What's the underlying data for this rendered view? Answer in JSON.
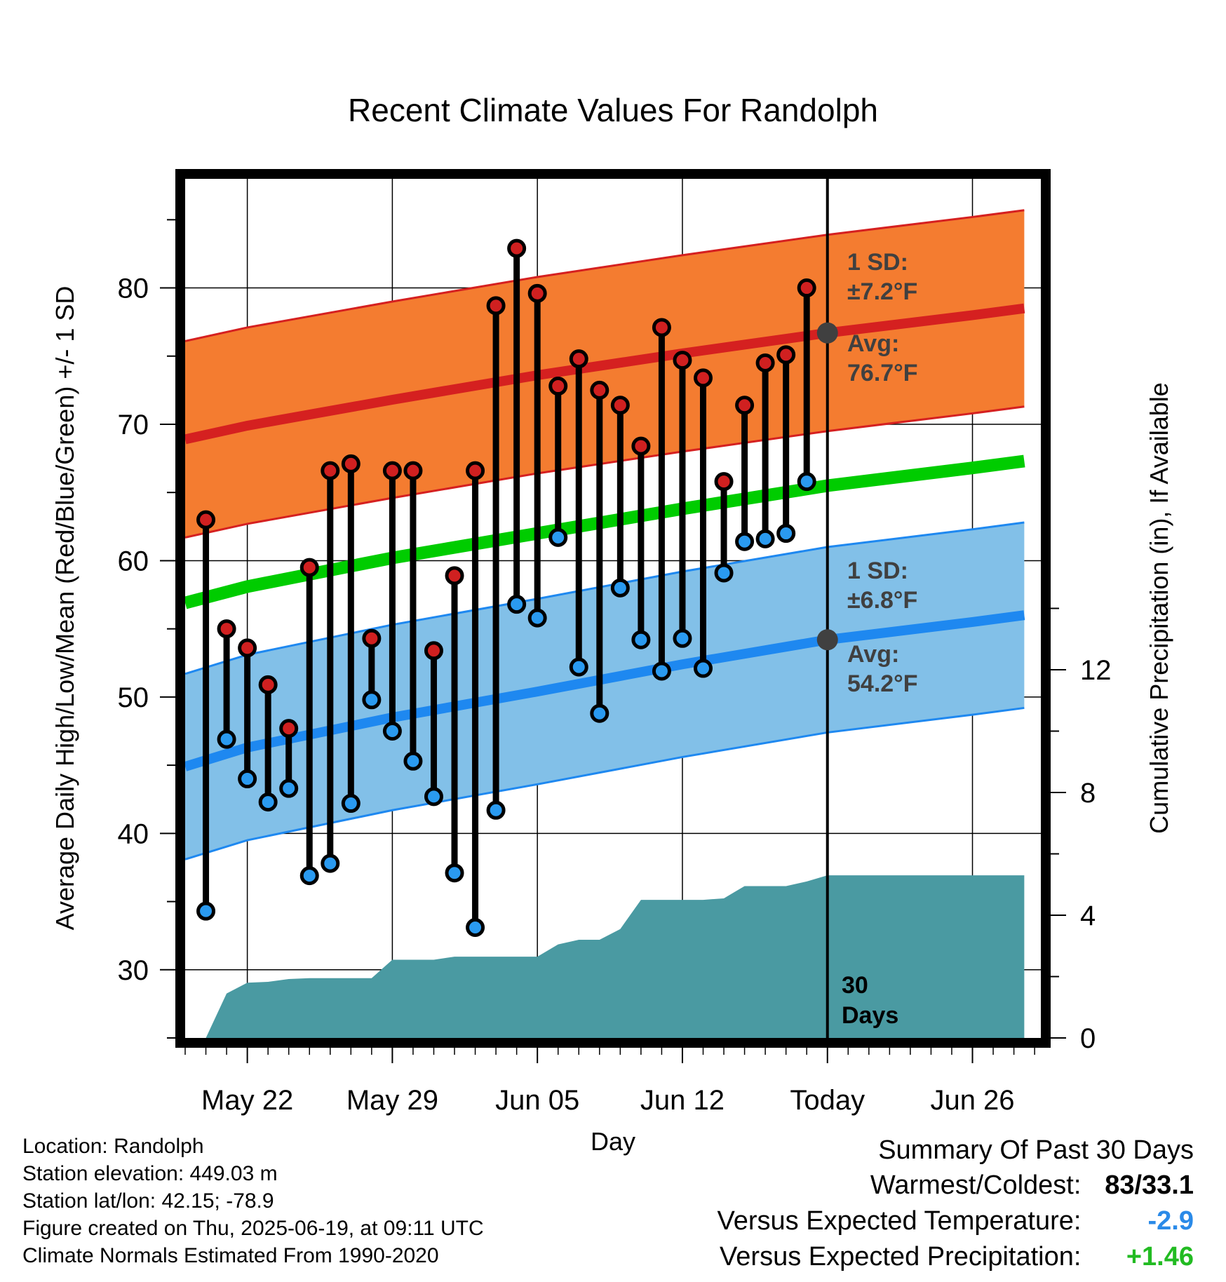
{
  "chart_data": {
    "type": "line",
    "title": "Recent Climate Values For Randolph",
    "xlabel": "Day",
    "ylabel": "Average Daily High/Low/Mean (Red/Blue/Green) +/- 1 SD",
    "y2label": "Cumulative Precipitation (in), If Available",
    "ylim": [
      25,
      88
    ],
    "y2lim": [
      0,
      28
    ],
    "yticks": [
      30,
      40,
      50,
      60,
      70,
      80
    ],
    "y2ticks": [
      0,
      4,
      8,
      12
    ],
    "x_tick_labels": [
      {
        "day": 3,
        "label": "May 22"
      },
      {
        "day": 10,
        "label": "May 29"
      },
      {
        "day": 17,
        "label": "Jun 05"
      },
      {
        "day": 24,
        "label": "Jun 12"
      },
      {
        "day": 31,
        "label": "Today"
      },
      {
        "day": 38,
        "label": "Jun 26"
      }
    ],
    "xlim": [
      0,
      41.3
    ],
    "daily_high": [
      63,
      55,
      53.6,
      50.9,
      47.7,
      59.5,
      66.6,
      67.1,
      54.3,
      66.6,
      66.6,
      53.4,
      58.9,
      66.6,
      78.7,
      82.9,
      79.6,
      72.8,
      74.8,
      72.5,
      71.4,
      68.4,
      77.1,
      74.7,
      73.4,
      65.8,
      71.4,
      74.5,
      75.1,
      80
    ],
    "daily_low": [
      34.3,
      46.9,
      44,
      42.3,
      43.3,
      36.9,
      37.8,
      42.2,
      49.8,
      47.5,
      45.3,
      42.7,
      37.1,
      33.1,
      41.7,
      56.8,
      55.8,
      61.7,
      52.2,
      48.8,
      58,
      54.2,
      51.9,
      54.3,
      52.1,
      59.1,
      61.4,
      61.6,
      62,
      65.8
    ],
    "normal_high": {
      "x": [
        0,
        3,
        10,
        17,
        24,
        31,
        38,
        40.5
      ],
      "mean": [
        68.9,
        69.9,
        71.8,
        73.6,
        75.2,
        76.7,
        78,
        78.5
      ],
      "sd": 7.2
    },
    "normal_low": {
      "x": [
        0,
        3,
        10,
        17,
        24,
        31,
        38,
        40.5
      ],
      "mean": [
        44.9,
        46.3,
        48.5,
        50.4,
        52.4,
        54.2,
        55.5,
        56
      ],
      "sd": 6.8
    },
    "normal_mean": {
      "x": [
        0,
        3,
        10,
        17,
        24,
        31,
        38,
        40.5
      ],
      "values": [
        56.9,
        58.1,
        60.2,
        62,
        63.8,
        65.5,
        66.8,
        67.3
      ]
    },
    "cumulative_precip": {
      "x": [
        1,
        2,
        3,
        4,
        5,
        6,
        7,
        8,
        9,
        10,
        11,
        12,
        13,
        14,
        15,
        16,
        17,
        18,
        19,
        20,
        21,
        22,
        23,
        24,
        25,
        26,
        27,
        28,
        29,
        30,
        31,
        40.5
      ],
      "values": [
        0,
        1.45,
        1.8,
        1.83,
        1.92,
        1.95,
        1.95,
        1.95,
        1.95,
        2.55,
        2.55,
        2.55,
        2.65,
        2.65,
        2.65,
        2.65,
        2.65,
        3.05,
        3.2,
        3.2,
        3.55,
        4.5,
        4.5,
        4.5,
        4.5,
        4.55,
        4.95,
        4.95,
        4.95,
        5.1,
        5.3,
        5.3
      ]
    },
    "annotations": {
      "high_sd": "1 SD:",
      "high_sd_value": "±7.2°F",
      "high_avg": "Avg:",
      "high_avg_value": "76.7°F",
      "low_sd": "1 SD:",
      "low_sd_value": "±6.8°F",
      "low_avg": "Avg:",
      "low_avg_value": "54.2°F",
      "window_line1": "30",
      "window_line2": "Days"
    },
    "colors": {
      "high_band": "#f47c30",
      "high_line": "#d52020",
      "low_band": "#82c0e8",
      "low_line": "#1e88f0",
      "mean_line": "#00cc00",
      "precip": "#4a9aa2",
      "high_dot": "#d02020",
      "low_dot": "#2a9af0",
      "annotation": "#404040"
    }
  },
  "footer": {
    "location": "Location: Randolph",
    "elevation": "Station elevation: 449.03 m",
    "latlon": "Station lat/lon: 42.15; -78.9",
    "created": "Figure created on Thu, 2025-06-19, at 09:11 UTC",
    "normals": "Climate Normals Estimated From 1990-2020"
  },
  "summary": {
    "title": "Summary Of Past 30 Days",
    "warmest_coldest_label": "Warmest/Coldest:",
    "warmest_coldest_value": "83/33.1",
    "temp_label": "Versus Expected Temperature:",
    "temp_value": "-2.9",
    "temp_color": "#2a8ae8",
    "precip_label": "Versus Expected Precipitation:",
    "precip_value": "+1.46",
    "precip_color": "#22bb22"
  }
}
